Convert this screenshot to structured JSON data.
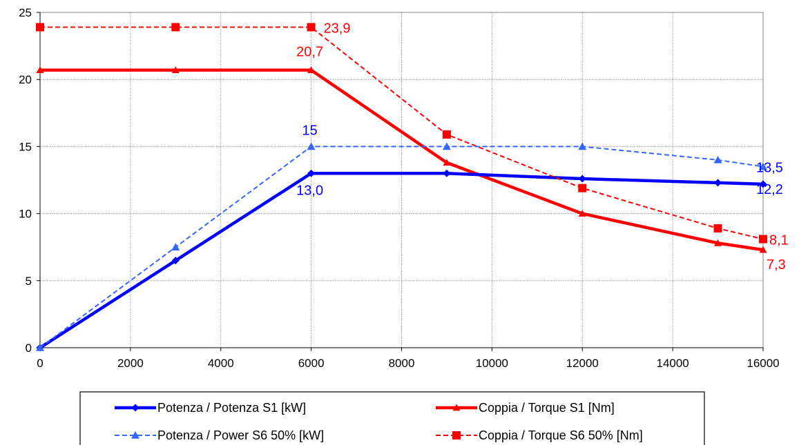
{
  "chart_data": {
    "type": "line",
    "title": "",
    "xlabel": "",
    "ylabel": "",
    "xlim": [
      0,
      16000
    ],
    "ylim": [
      0,
      25
    ],
    "x_ticks": [
      0,
      2000,
      4000,
      6000,
      8000,
      10000,
      12000,
      14000,
      16000
    ],
    "y_ticks": [
      0,
      5,
      10,
      15,
      20,
      25
    ],
    "x_tick_labels": [
      "0",
      "2000",
      "4000",
      "6000",
      "8000",
      "10000",
      "12000",
      "14000",
      "16000"
    ],
    "y_tick_labels": [
      "0",
      "5",
      "10",
      "15",
      "20",
      "25"
    ],
    "grid": true,
    "legend_position": "bottom",
    "series": [
      {
        "name": "Potenza / Potenza S1 [kW]",
        "color": "#0000ff",
        "style": "solid",
        "marker": "diamond",
        "x": [
          0,
          3000,
          6000,
          9000,
          12000,
          15000,
          16000
        ],
        "values": [
          0,
          6.5,
          13.0,
          13.0,
          12.6,
          12.3,
          12.2
        ]
      },
      {
        "name": "Coppia / Torque S1 [Nm]",
        "color": "#ff0000",
        "style": "solid",
        "marker": "triangle",
        "x": [
          0,
          3000,
          6000,
          9000,
          12000,
          15000,
          16000
        ],
        "values": [
          20.7,
          20.7,
          20.7,
          13.8,
          10.0,
          7.8,
          7.3
        ]
      },
      {
        "name": "Potenza / Power S6 50% [kW]",
        "color": "#3366ff",
        "style": "dashed",
        "marker": "triangle",
        "x": [
          0,
          3000,
          6000,
          9000,
          12000,
          15000,
          16000
        ],
        "values": [
          0,
          7.5,
          15.0,
          15.0,
          15.0,
          14.0,
          13.5
        ]
      },
      {
        "name": "Coppia / Torque S6 50% [Nm]",
        "color": "#ff0000",
        "style": "dashed",
        "marker": "square",
        "x": [
          0,
          3000,
          6000,
          9000,
          12000,
          15000,
          16000
        ],
        "values": [
          23.9,
          23.9,
          23.9,
          15.9,
          11.9,
          8.9,
          8.1
        ]
      }
    ],
    "annotations": [
      {
        "text": "23,9",
        "x": 6000,
        "y": 23.9,
        "color": "#ff0000"
      },
      {
        "text": "20,7",
        "x": 6000,
        "y": 20.7,
        "color": "#ff0000"
      },
      {
        "text": "15",
        "x": 6000,
        "y": 15.0,
        "color": "#0000ff"
      },
      {
        "text": "13,0",
        "x": 6000,
        "y": 13.0,
        "color": "#0000ff"
      },
      {
        "text": "13,5",
        "x": 16000,
        "y": 13.5,
        "color": "#0000ff"
      },
      {
        "text": "12,2",
        "x": 16000,
        "y": 12.2,
        "color": "#0000ff"
      },
      {
        "text": "8,1",
        "x": 16000,
        "y": 8.1,
        "color": "#ff0000"
      },
      {
        "text": "7,3",
        "x": 16000,
        "y": 7.3,
        "color": "#ff0000"
      }
    ]
  }
}
